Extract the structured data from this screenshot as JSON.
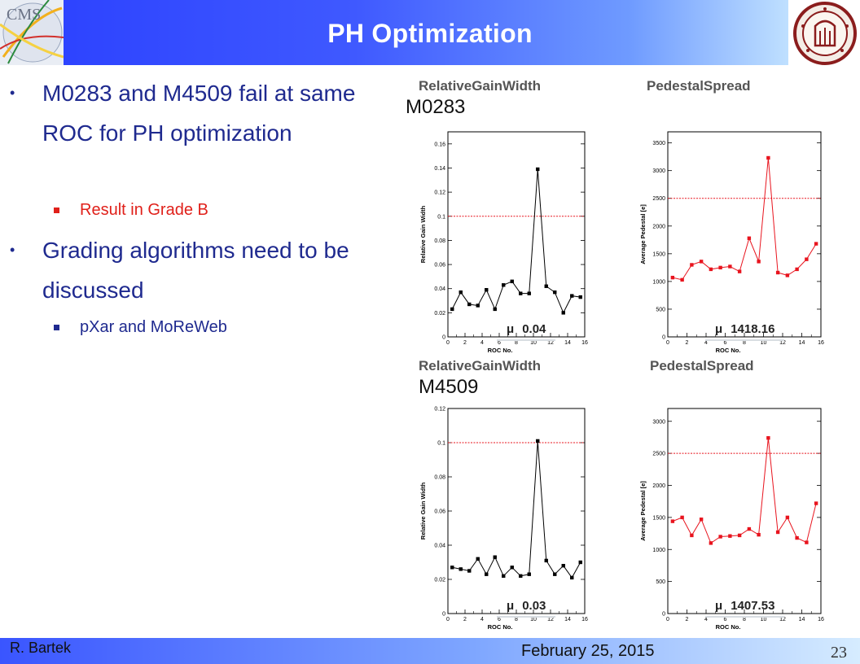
{
  "slide": {
    "title": "PH Optimization",
    "bullets": [
      {
        "text": "M0283 and M4509 fail at same ROC for PH optimization",
        "sub": {
          "text": "Result in Grade B",
          "color": "#e0201a"
        }
      },
      {
        "text": "Grading algorithms need to be discussed",
        "sub": {
          "text": "pXar and MoReWeb",
          "color": "#1f2a8f"
        }
      }
    ],
    "module_labels": [
      "M0283",
      "M4509"
    ],
    "footer": {
      "author": "R. Bartek",
      "date": "February 25, 2015",
      "page": "23"
    },
    "colors": {
      "bullet_text": "#1f2a8f",
      "grade_text": "#e0201a",
      "banner": "#3a52ff"
    },
    "logos": {
      "left": "CMS",
      "right": "university-seal"
    }
  },
  "chart_data": [
    {
      "type": "line",
      "module": "M0283",
      "title": "RelativeGainWidth",
      "xlabel": "ROC No.",
      "ylabel": "Relative Gain Width",
      "xlim": [
        0,
        16
      ],
      "ylim": [
        0,
        0.17
      ],
      "xticks": [
        "0",
        "2",
        "4",
        "6",
        "8",
        "10",
        "12",
        "14",
        "16"
      ],
      "yticks": [
        "0",
        "0.02",
        "0.04",
        "0.06",
        "0.08",
        "0.1",
        "0.12",
        "0.14",
        "0.16"
      ],
      "ytick_values": [
        0,
        0.02,
        0.04,
        0.06,
        0.08,
        0.1,
        0.12,
        0.14,
        0.16
      ],
      "x": [
        0,
        1,
        2,
        3,
        4,
        5,
        6,
        7,
        8,
        9,
        10,
        11,
        12,
        13,
        14,
        15
      ],
      "series": [
        {
          "values": [
            0.023,
            0.037,
            0.027,
            0.026,
            0.039,
            0.023,
            0.043,
            0.046,
            0.036,
            0.036,
            0.139,
            0.042,
            0.037,
            0.02,
            0.034,
            0.033
          ],
          "color": "#000000"
        }
      ],
      "threshold": 0.1,
      "mean_label": "μ",
      "mean_value": "0.04"
    },
    {
      "type": "line",
      "module": "M0283",
      "title": "PedestalSpread",
      "xlabel": "ROC No.",
      "ylabel": "Average Pedestal [e]",
      "xlim": [
        0,
        16
      ],
      "ylim": [
        0,
        3700
      ],
      "xticks": [
        "0",
        "2",
        "4",
        "6",
        "8",
        "10",
        "12",
        "14",
        "16"
      ],
      "yticks": [
        "0",
        "500",
        "1000",
        "1500",
        "2000",
        "2500",
        "3000",
        "3500"
      ],
      "ytick_values": [
        0,
        500,
        1000,
        1500,
        2000,
        2500,
        3000,
        3500
      ],
      "x": [
        0,
        1,
        2,
        3,
        4,
        5,
        6,
        7,
        8,
        9,
        10,
        11,
        12,
        13,
        14,
        15
      ],
      "series": [
        {
          "values": [
            1070,
            1030,
            1300,
            1360,
            1220,
            1250,
            1270,
            1180,
            1780,
            1360,
            3230,
            1160,
            1110,
            1220,
            1400,
            1680
          ],
          "color": "#e8141e"
        }
      ],
      "threshold": 2500,
      "mean_label": "μ",
      "mean_value": "1418.16"
    },
    {
      "type": "line",
      "module": "M4509",
      "title": "RelativeGainWidth",
      "xlabel": "ROC No.",
      "ylabel": "Relative Gain Width",
      "xlim": [
        0,
        16
      ],
      "ylim": [
        0,
        0.12
      ],
      "xticks": [
        "0",
        "2",
        "4",
        "6",
        "8",
        "10",
        "12",
        "14",
        "16"
      ],
      "yticks": [
        "0",
        "0.02",
        "0.04",
        "0.06",
        "0.08",
        "0.1",
        "0.12"
      ],
      "ytick_values": [
        0,
        0.02,
        0.04,
        0.06,
        0.08,
        0.1,
        0.12
      ],
      "x": [
        0,
        1,
        2,
        3,
        4,
        5,
        6,
        7,
        8,
        9,
        10,
        11,
        12,
        13,
        14,
        15
      ],
      "series": [
        {
          "values": [
            0.027,
            0.026,
            0.025,
            0.032,
            0.023,
            0.033,
            0.022,
            0.027,
            0.022,
            0.023,
            0.101,
            0.031,
            0.023,
            0.028,
            0.021,
            0.03
          ],
          "color": "#000000"
        }
      ],
      "threshold": 0.1,
      "mean_label": "μ",
      "mean_value": "0.03"
    },
    {
      "type": "line",
      "module": "M4509",
      "title": "PedestalSpread",
      "xlabel": "ROC No.",
      "ylabel": "Average Pedestal [e]",
      "xlim": [
        0,
        16
      ],
      "ylim": [
        0,
        3200
      ],
      "xticks": [
        "0",
        "2",
        "4",
        "6",
        "8",
        "10",
        "12",
        "14",
        "16"
      ],
      "yticks": [
        "0",
        "500",
        "1000",
        "1500",
        "2000",
        "2500",
        "3000"
      ],
      "ytick_values": [
        0,
        500,
        1000,
        1500,
        2000,
        2500,
        3000
      ],
      "x": [
        0,
        1,
        2,
        3,
        4,
        5,
        6,
        7,
        8,
        9,
        10,
        11,
        12,
        13,
        14,
        15
      ],
      "series": [
        {
          "values": [
            1440,
            1500,
            1220,
            1470,
            1100,
            1200,
            1210,
            1220,
            1320,
            1230,
            2740,
            1270,
            1500,
            1180,
            1110,
            1720
          ],
          "color": "#e8141e"
        }
      ],
      "threshold": 2500,
      "mean_label": "μ",
      "mean_value": "1407.53"
    }
  ]
}
